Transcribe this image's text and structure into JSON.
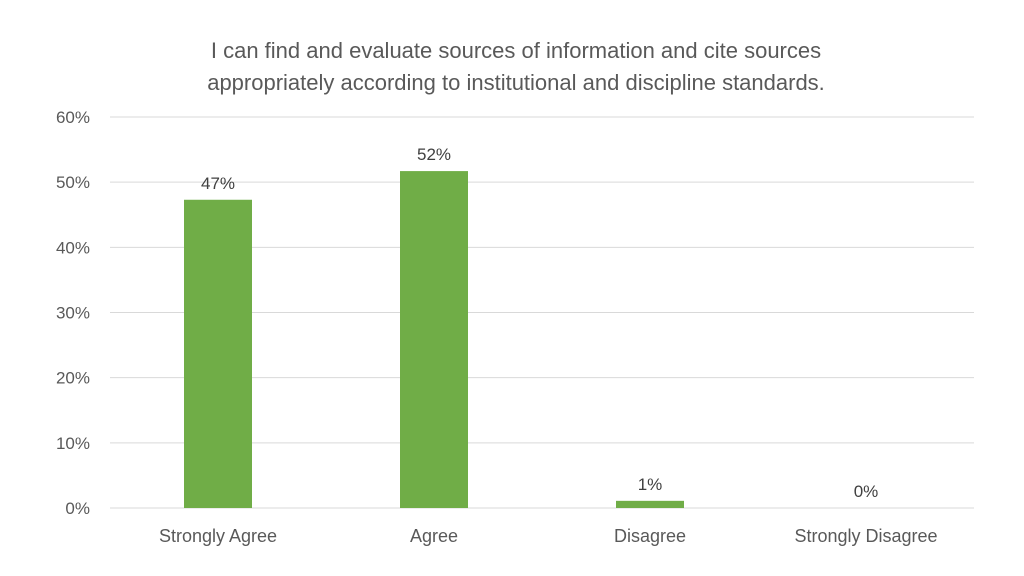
{
  "chart_data": {
    "type": "bar",
    "title_lines": [
      "I can find and evaluate sources of information and cite sources",
      "appropriately according to institutional and discipline standards."
    ],
    "categories": [
      "Strongly Agree",
      "Agree",
      "Disagree",
      "Strongly Disagree"
    ],
    "values": [
      47.3,
      51.7,
      1.1,
      0
    ],
    "data_labels": [
      "47%",
      "52%",
      "1%",
      "0%"
    ],
    "ylim": [
      0,
      60
    ],
    "yticks": [
      0,
      10,
      20,
      30,
      40,
      50,
      60
    ],
    "ytick_labels": [
      "0%",
      "10%",
      "20%",
      "30%",
      "40%",
      "50%",
      "60%"
    ],
    "grid": true,
    "legend": "none",
    "bar_color": "#70ad47"
  }
}
